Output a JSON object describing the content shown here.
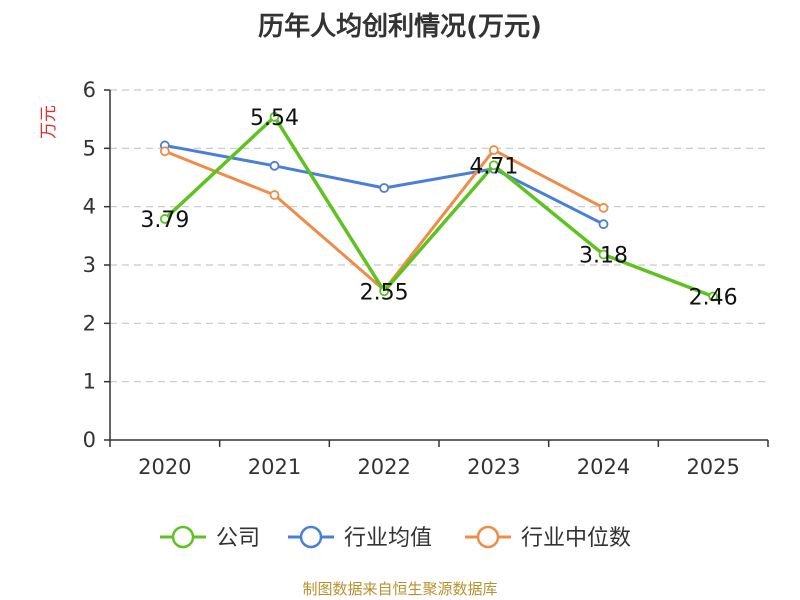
{
  "chart_data": {
    "type": "line",
    "title": "历年人均创利情况(万元)",
    "ylabel": "万元",
    "xlabel": "",
    "ylim": [
      0,
      6
    ],
    "yticks": [
      0,
      1,
      2,
      3,
      4,
      5,
      6
    ],
    "categories": [
      "2020",
      "2021",
      "2022",
      "2023",
      "2024",
      "2025"
    ],
    "series": [
      {
        "name": "公司",
        "color": "#5ec321",
        "values": [
          3.79,
          5.54,
          2.55,
          4.71,
          3.18,
          2.46
        ],
        "labels": [
          "3.79",
          "5.54",
          "2.55",
          "4.71",
          "3.18",
          "2.46"
        ]
      },
      {
        "name": "行业均值",
        "color": "#4a7fd8",
        "values": [
          5.05,
          4.7,
          4.32,
          4.65,
          3.7,
          null
        ]
      },
      {
        "name": "行业中位数",
        "color": "#f08c4a",
        "values": [
          4.95,
          4.2,
          2.57,
          4.97,
          3.98,
          null
        ]
      }
    ],
    "grid": true,
    "legend_position": "bottom"
  },
  "footer": {
    "source": "制图数据来自恒生聚源数据库"
  }
}
